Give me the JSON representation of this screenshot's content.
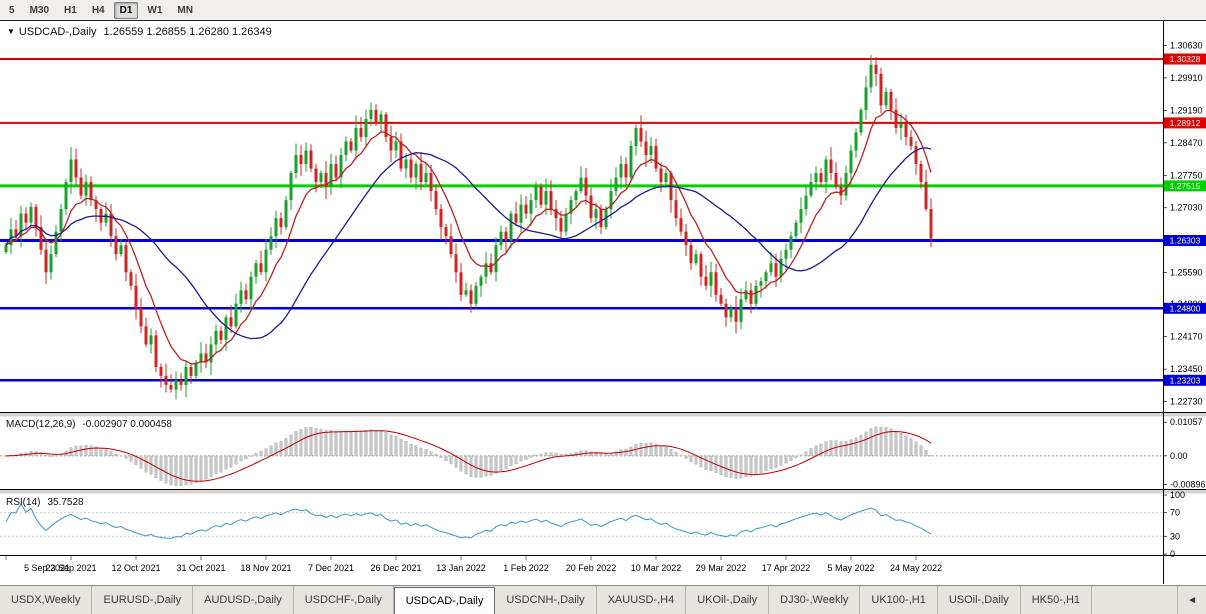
{
  "toolbar": {
    "timeframes": [
      "5",
      "M30",
      "H1",
      "H4",
      "D1",
      "W1",
      "MN"
    ],
    "selected": "D1"
  },
  "chart": {
    "collapse_icon": "▼",
    "title": "USDCAD-,Daily",
    "ohlc_text": "1.26559 1.26855 1.26280 1.26349"
  },
  "chart_data": {
    "type": "candlestick",
    "symbol": "USDCAD",
    "timeframe": "Daily",
    "title": "USDCAD-,Daily",
    "price_min": 1.225,
    "price_max": 1.3095,
    "up_color": "#18a22c",
    "down_color": "#d32424",
    "closes": [
      1.262,
      1.2655,
      1.264,
      1.269,
      1.267,
      1.2705,
      1.266,
      1.261,
      1.256,
      1.26,
      1.265,
      1.27,
      1.276,
      1.281,
      1.277,
      1.273,
      1.276,
      1.272,
      1.27,
      1.267,
      1.269,
      1.264,
      1.26,
      1.262,
      1.256,
      1.253,
      1.248,
      1.244,
      1.24,
      1.242,
      1.235,
      1.233,
      1.231,
      1.23,
      1.232,
      1.231,
      1.235,
      1.233,
      1.236,
      1.238,
      1.236,
      1.24,
      1.243,
      1.241,
      1.246,
      1.244,
      1.249,
      1.252,
      1.25,
      1.255,
      1.258,
      1.256,
      1.261,
      1.264,
      1.268,
      1.266,
      1.272,
      1.278,
      1.282,
      1.28,
      1.283,
      1.279,
      1.276,
      1.278,
      1.275,
      1.28,
      1.277,
      1.282,
      1.285,
      1.283,
      1.288,
      1.286,
      1.29,
      1.292,
      1.289,
      1.291,
      1.286,
      1.283,
      1.285,
      1.279,
      1.281,
      1.277,
      1.28,
      1.276,
      1.278,
      1.274,
      1.27,
      1.266,
      1.264,
      1.26,
      1.256,
      1.251,
      1.252,
      1.249,
      1.253,
      1.255,
      1.258,
      1.256,
      1.262,
      1.265,
      1.263,
      1.269,
      1.267,
      1.271,
      1.269,
      1.272,
      1.275,
      1.271,
      1.274,
      1.27,
      1.268,
      1.265,
      1.269,
      1.272,
      1.274,
      1.277,
      1.273,
      1.268,
      1.27,
      1.266,
      1.27,
      1.274,
      1.277,
      1.28,
      1.277,
      1.284,
      1.288,
      1.285,
      1.282,
      1.284,
      1.279,
      1.276,
      1.278,
      1.272,
      1.268,
      1.265,
      1.262,
      1.258,
      1.26,
      1.255,
      1.253,
      1.256,
      1.251,
      1.249,
      1.246,
      1.248,
      1.245,
      1.25,
      1.252,
      1.249,
      1.253,
      1.254,
      1.256,
      1.258,
      1.255,
      1.259,
      1.261,
      1.264,
      1.267,
      1.27,
      1.273,
      1.276,
      1.278,
      1.276,
      1.281,
      1.278,
      1.275,
      1.273,
      1.278,
      1.283,
      1.287,
      1.292,
      1.297,
      1.302,
      1.3,
      1.293,
      1.296,
      1.292,
      1.288,
      1.289,
      1.286,
      1.284,
      1.28,
      1.276,
      1.27,
      1.2635
    ],
    "x_labels": [
      {
        "label": "5 Sep 2021",
        "i": 0
      },
      {
        "label": "23 Sep 2021",
        "i": 13
      },
      {
        "label": "12 Oct 2021",
        "i": 26
      },
      {
        "label": "31 Oct 2021",
        "i": 39
      },
      {
        "label": "18 Nov 2021",
        "i": 52
      },
      {
        "label": "7 Dec 2021",
        "i": 65
      },
      {
        "label": "26 Dec 2021",
        "i": 78
      },
      {
        "label": "13 Jan 2022",
        "i": 91
      },
      {
        "label": "1 Feb 2022",
        "i": 104
      },
      {
        "label": "20 Feb 2022",
        "i": 117
      },
      {
        "label": "10 Mar 2022",
        "i": 130
      },
      {
        "label": "29 Mar 2022",
        "i": 143
      },
      {
        "label": "17 Apr 2022",
        "i": 156
      },
      {
        "label": "5 May 2022",
        "i": 169
      },
      {
        "label": "24 May 2022",
        "i": 182
      }
    ],
    "y_axis_labels": [
      "1.30630",
      "1.29910",
      "1.29190",
      "1.28470",
      "1.27750",
      "1.27030",
      "1.26310",
      "1.25590",
      "1.24890",
      "1.24170",
      "1.23450",
      "1.22730"
    ],
    "hlines": [
      {
        "price": 1.30328,
        "label": "1.30328",
        "color": "#e00000",
        "width": 2
      },
      {
        "price": 1.28912,
        "label": "1.28912",
        "color": "#e00000",
        "width": 2
      },
      {
        "price": 1.27515,
        "label": "1.27515",
        "color": "#00cf00",
        "width": 3
      },
      {
        "price": 1.26303,
        "label": "1.26303",
        "color": "#0000cf",
        "width": 3
      },
      {
        "price": 1.248,
        "label": "1.24800",
        "color": "#0000cf",
        "width": 2.5
      },
      {
        "price": 1.23203,
        "label": "1.23203",
        "color": "#0000cf",
        "width": 2.5
      }
    ],
    "ma": [
      {
        "type": "ema",
        "period": 9,
        "color": "#c02020"
      },
      {
        "type": "sma",
        "period": 26,
        "color": "#1c1c8f"
      }
    ],
    "macd": {
      "label": "MACD(12,26,9)",
      "values": "-0.002907 0.000458",
      "fast": 12,
      "slow": 26,
      "signal": 9,
      "axis_labels": [
        "0.01057",
        "0.00",
        "-0.00896"
      ],
      "axis_values": [
        0.01057,
        0,
        -0.00896
      ],
      "histogram_color": "#c6c6c6",
      "signal_color": "#c00000"
    },
    "rsi": {
      "label": "RSI(14)",
      "value": "35.7528",
      "period": 14,
      "axis_labels": [
        "100",
        "70",
        "30",
        "0"
      ],
      "axis_values": [
        100,
        70,
        30,
        0
      ],
      "levels": [
        70,
        30
      ],
      "line_color": "#3f95c9"
    }
  },
  "tabs": {
    "items": [
      "USDX,Weekly",
      "EURUSD-,Daily",
      "AUDUSD-,Daily",
      "USDCHF-,Daily",
      "USDCAD-,Daily",
      "USDCNH-,Daily",
      "XAUUSD-,H4",
      "UKOil-,Daily",
      "DJ30-,Weekly",
      "UK100-,H1",
      "USOil-,Daily",
      "HK50-,H1"
    ],
    "selected_index": 4,
    "nav_icon": "◄"
  }
}
